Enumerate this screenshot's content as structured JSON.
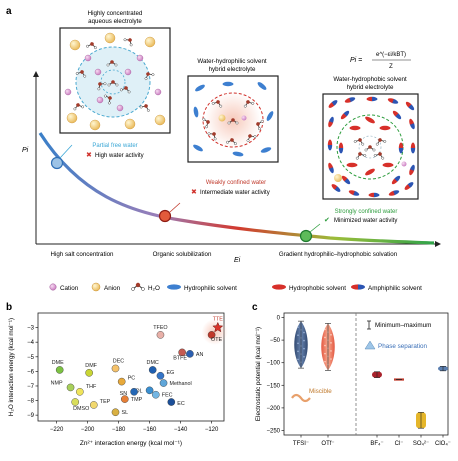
{
  "panel_a": {
    "label": "a",
    "boxes": [
      {
        "title_line1": "Highly concentrated",
        "title_line2": "aqueous electrolyte",
        "caption": "Partial free water",
        "status": "High water activity",
        "status_mark": "✖"
      },
      {
        "title_line1": "Water-hydrophilic solvent",
        "title_line2": "hybrid electrolyte",
        "caption": "Weakly confined water",
        "status": "Intermediate water activity",
        "status_mark": "✖"
      },
      {
        "title_line1": "Water-hydrophobic solvent",
        "title_line2": "hybrid electrolyte",
        "caption": "Strongly confined water",
        "status": "Minimized water activity",
        "status_mark": "✔"
      }
    ],
    "formula": {
      "lhs": "Pi =",
      "numerator": "e^(−εi/kBT)",
      "denominator": "Z"
    },
    "y_axis": "Pi",
    "x_axis": "Ei",
    "regions": [
      "High salt concentration",
      "Organic solubilization",
      "Gradient hydrophilic–hydrophobic solvation"
    ],
    "region_colors": [
      "#3a6fb7",
      "#c0392b",
      "#2e9d3e"
    ],
    "legend": [
      "Cation",
      "Anion",
      "H₂O",
      "Hydrophilic solvent",
      "Hydrophobic solvent",
      "Amphiphilic solvent"
    ]
  },
  "panel_b": {
    "label": "b",
    "chart_data": {
      "type": "scatter",
      "xlabel": "Zn²⁺ interaction energy (kcal mol⁻¹)",
      "ylabel": "H₂O interaction energy (kcal mol⁻¹)",
      "xlim": [
        -232,
        -112
      ],
      "ylim": [
        -9.4,
        -2.0
      ],
      "xticks": [
        -220,
        -200,
        -180,
        -160,
        -140,
        -120
      ],
      "yticks": [
        -3,
        -4,
        -5,
        -6,
        -7,
        -8,
        -9
      ],
      "xtick_labels": [
        "−220",
        "−200",
        "−180",
        "−160",
        "−140",
        "−120"
      ],
      "ytick_labels": [
        "−3",
        "−4",
        "−5",
        "−6",
        "−7",
        "−8",
        "−9"
      ],
      "points": [
        {
          "name": "DME",
          "x": -218,
          "y": -5.9,
          "color": "#7cc242"
        },
        {
          "name": "DMF",
          "x": -199,
          "y": -6.1,
          "color": "#c9d534"
        },
        {
          "name": "NMP",
          "x": -211,
          "y": -7.1,
          "color": "#a8d05a"
        },
        {
          "name": "THF",
          "x": -205,
          "y": -7.4,
          "color": "#f0e45a"
        },
        {
          "name": "DEC",
          "x": -182,
          "y": -5.8,
          "color": "#f5c26b"
        },
        {
          "name": "PC",
          "x": -178,
          "y": -6.7,
          "color": "#e8a93a"
        },
        {
          "name": "DMSO",
          "x": -208,
          "y": -8.1,
          "color": "#d8dd5b"
        },
        {
          "name": "TEP",
          "x": -196,
          "y": -8.3,
          "color": "#f1d86e"
        },
        {
          "name": "TMP",
          "x": -176,
          "y": -7.9,
          "color": "#e67f37"
        },
        {
          "name": "SL",
          "x": -182,
          "y": -8.8,
          "color": "#d9b042"
        },
        {
          "name": "DMC",
          "x": -158,
          "y": -5.9,
          "color": "#1f5fb0"
        },
        {
          "name": "EG",
          "x": -153,
          "y": -6.3,
          "color": "#3475c8"
        },
        {
          "name": "Methanol",
          "x": -151,
          "y": -6.8,
          "color": "#5fa6d9"
        },
        {
          "name": "DOL",
          "x": -160,
          "y": -7.3,
          "color": "#3a8fd1"
        },
        {
          "name": "SN",
          "x": -170,
          "y": -7.4,
          "color": "#2467b5"
        },
        {
          "name": "FEC",
          "x": -156,
          "y": -7.6,
          "color": "#74b6e3"
        },
        {
          "name": "EC",
          "x": -146,
          "y": -8.1,
          "color": "#1b4f99"
        },
        {
          "name": "TFEO",
          "x": -153,
          "y": -3.5,
          "color": "#e8b0a8"
        },
        {
          "name": "BTFE",
          "x": -139,
          "y": -4.7,
          "color": "#c55a50"
        },
        {
          "name": "AN",
          "x": -134,
          "y": -4.8,
          "color": "#2c5fb0"
        },
        {
          "name": "OTE",
          "x": -120,
          "y": -3.5,
          "color": "#c0392b"
        },
        {
          "name": "TTE",
          "x": -116,
          "y": -3.0,
          "color": "#d9342b"
        }
      ]
    }
  },
  "panel_c": {
    "label": "c",
    "chart_data": {
      "type": "box",
      "ylabel": "Electrostatic potential (kcal mol⁻¹)",
      "ylim": [
        -260,
        10
      ],
      "yticks": [
        0,
        -50,
        -100,
        -150,
        -200,
        -250
      ],
      "ytick_labels": [
        "0",
        "−50",
        "−100",
        "−150",
        "−200",
        "−250"
      ],
      "categories": [
        "TFSI⁻",
        "OTf⁻",
        "BF₄⁻",
        "Cl⁻",
        "SO₄²⁻",
        "ClO₄⁻"
      ],
      "ranges": [
        {
          "name": "TFSI⁻",
          "min": -112,
          "max": -8,
          "color": "#2c4a7a"
        },
        {
          "name": "OTf⁻",
          "min": -117,
          "max": -13,
          "color": "#e8674a"
        },
        {
          "name": "BF₄⁻",
          "min": -133,
          "max": -120,
          "color": "#a9232c"
        },
        {
          "name": "Cl⁻",
          "min": -137,
          "max": -137,
          "color": "#c0392b"
        },
        {
          "name": "SO₄²⁻",
          "min": -245,
          "max": -210,
          "color": "#e5b62a"
        },
        {
          "name": "ClO₄⁻",
          "min": -118,
          "max": -108,
          "color": "#5b7fb0"
        }
      ],
      "legend_range": "Minimum–maximum",
      "legend_phase": "Phase separation",
      "legend_miscible": "Miscible"
    }
  }
}
